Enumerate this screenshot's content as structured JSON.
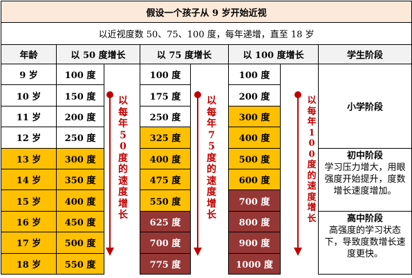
{
  "title": "假设一个孩子从 9 岁开始近视",
  "subtitle": "以近视度数 50、75、100 度，每年递增，直至 18 岁",
  "headers": {
    "age": "年龄",
    "col50": "以 50 度增长",
    "col75": "以 75 度增长",
    "col100": "以 100 度增长",
    "stage": "学生阶段"
  },
  "rows": [
    {
      "age": "9 岁",
      "d50": "100 度",
      "d75": "100 度",
      "d100": "100 度"
    },
    {
      "age": "10 岁",
      "d50": "150 度",
      "d75": "175 度",
      "d100": "200 度"
    },
    {
      "age": "11 岁",
      "d50": "200 度",
      "d75": "250 度",
      "d100": "300 度"
    },
    {
      "age": "12 岁",
      "d50": "250 度",
      "d75": "325 度",
      "d100": "400 度"
    },
    {
      "age": "13 岁",
      "d50": "300 度",
      "d75": "400 度",
      "d100": "500 度"
    },
    {
      "age": "14 岁",
      "d50": "350 度",
      "d75": "475 度",
      "d100": "600 度"
    },
    {
      "age": "15 岁",
      "d50": "400 度",
      "d75": "550 度",
      "d100": "700 度"
    },
    {
      "age": "16 岁",
      "d50": "450 度",
      "d75": "625 度",
      "d100": "800 度"
    },
    {
      "age": "17 岁",
      "d50": "500 度",
      "d75": "700 度",
      "d100": "900 度"
    },
    {
      "age": "18 岁",
      "d50": "550 度",
      "d75": "775 度",
      "d100": "1000 度"
    }
  ],
  "arrows": {
    "a50": "以每年50度的速度增长",
    "a75": "以每年75度的速度增长",
    "a100": "以每年100度的速度增长"
  },
  "stages": {
    "primary": "小学阶段",
    "middle_title": "初中阶段",
    "middle_desc": "学习压力增大，用眼强度开始提升，度数增长速度增加。",
    "high_title": "高中阶段",
    "high_desc": "高强度的学习状态下，导致度数增长速度更快。"
  },
  "colors": {
    "title_bg": "#fde9d9",
    "header_bg": "#f2f2f2",
    "yellow": "#ffc000",
    "red": "#953735",
    "arrow": "#c00000"
  }
}
